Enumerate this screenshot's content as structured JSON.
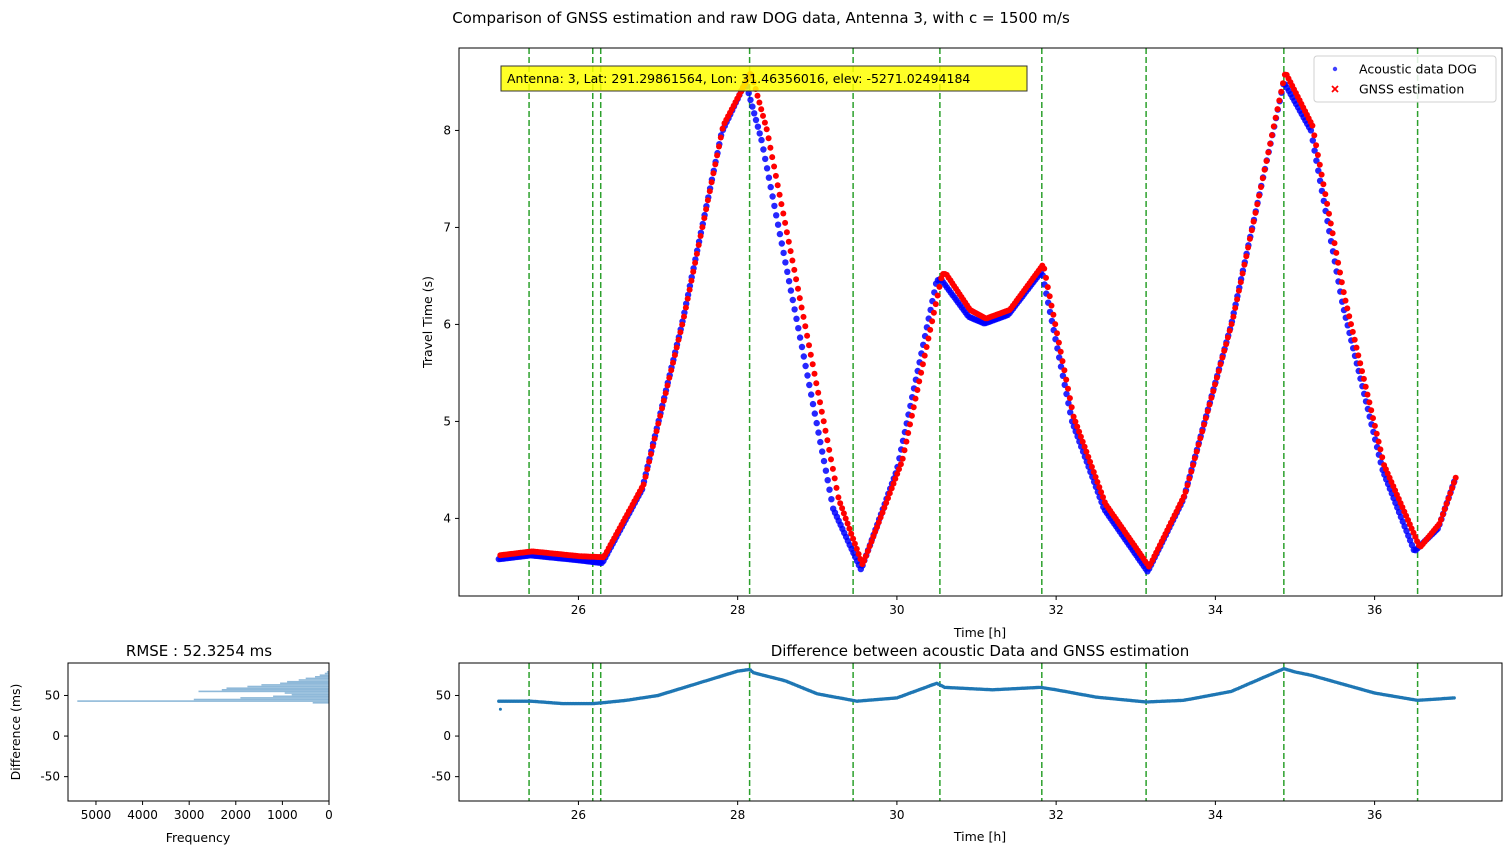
{
  "figure": {
    "title": "Comparison of GNSS estimation and raw DOG data, Antenna 3, with c = 1500 m/s"
  },
  "colors": {
    "acoustic": "#0000ff",
    "gnss": "#ff0000",
    "vline": "#2ca02c",
    "diff": "#1f77b4",
    "hist": "#8fb9d9",
    "annotation_bg": "#ffff00"
  },
  "chart_data": [
    {
      "id": "main",
      "type": "scatter",
      "title": "",
      "xlabel": "Time [h]",
      "ylabel": "Travel Time (s)",
      "xlim": [
        24.5,
        37.6
      ],
      "ylim": [
        3.2,
        8.85
      ],
      "xticks": [
        26,
        28,
        30,
        32,
        34,
        36
      ],
      "yticks": [
        4,
        5,
        6,
        7,
        8
      ],
      "grid": false,
      "legend_position": "top-right",
      "annotation": "Antenna: 3, Lat: 291.29861564, Lon: 31.46356016, elev: -5271.02494184",
      "vlines": [
        25.38,
        26.18,
        26.28,
        28.15,
        29.45,
        30.54,
        31.82,
        33.13,
        34.86,
        36.54
      ],
      "series": [
        {
          "name": "Acoustic data DOG",
          "marker": "dot",
          "x": [
            25.0,
            25.4,
            26.0,
            26.3,
            26.8,
            27.3,
            27.8,
            28.1,
            28.3,
            28.8,
            29.2,
            29.55,
            30.0,
            30.5,
            30.55,
            30.9,
            31.1,
            31.4,
            31.82,
            32.2,
            32.6,
            33.15,
            33.6,
            34.2,
            34.86,
            35.2,
            35.6,
            36.1,
            36.5,
            36.8,
            37.0
          ],
          "y": [
            3.58,
            3.62,
            3.57,
            3.54,
            4.3,
            6.0,
            7.98,
            8.5,
            7.9,
            5.8,
            4.1,
            3.47,
            4.5,
            6.45,
            6.47,
            6.08,
            6.01,
            6.1,
            6.55,
            5.0,
            4.1,
            3.45,
            4.2,
            6.0,
            8.5,
            8.0,
            6.2,
            4.5,
            3.66,
            3.9,
            4.38
          ]
        },
        {
          "name": "GNSS estimation",
          "marker": "x",
          "x": [
            25.0,
            25.4,
            26.0,
            26.3,
            26.8,
            27.3,
            27.8,
            28.15,
            28.35,
            28.85,
            29.25,
            29.55,
            30.05,
            30.55,
            30.6,
            30.9,
            31.1,
            31.4,
            31.82,
            32.2,
            32.6,
            33.15,
            33.6,
            34.2,
            34.86,
            35.2,
            35.6,
            36.1,
            36.55,
            36.8,
            37.0
          ],
          "y": [
            3.62,
            3.66,
            3.61,
            3.6,
            4.35,
            6.05,
            8.05,
            8.6,
            8.0,
            5.9,
            4.2,
            3.52,
            4.6,
            6.52,
            6.52,
            6.15,
            6.06,
            6.15,
            6.62,
            5.05,
            4.15,
            3.5,
            4.25,
            6.05,
            8.6,
            8.05,
            6.3,
            4.55,
            3.7,
            3.95,
            4.42
          ]
        }
      ]
    },
    {
      "id": "diff",
      "type": "scatter",
      "title": "Difference between acoustic Data and GNSS estimation",
      "xlabel": "Time [h]",
      "ylabel": "",
      "xlim": [
        24.5,
        37.6
      ],
      "ylim": [
        -80,
        90
      ],
      "xticks": [
        26,
        28,
        30,
        32,
        34,
        36
      ],
      "yticks": [
        -50,
        0,
        50
      ],
      "grid": false,
      "vlines": [
        25.38,
        26.18,
        26.28,
        28.15,
        29.45,
        30.54,
        31.82,
        33.13,
        34.86,
        36.54
      ],
      "series": [
        {
          "name": "",
          "x": [
            25.0,
            25.4,
            25.8,
            26.18,
            26.3,
            26.6,
            27.0,
            27.5,
            28.0,
            28.15,
            28.2,
            28.6,
            29.0,
            29.5,
            30.0,
            30.5,
            30.6,
            31.2,
            31.8,
            32.0,
            32.5,
            33.13,
            33.6,
            34.2,
            34.86,
            35.0,
            35.2,
            35.6,
            36.0,
            36.54,
            37.0
          ],
          "y": [
            43,
            43,
            40,
            40,
            41,
            44,
            50,
            65,
            80,
            82,
            78,
            68,
            52,
            43,
            47,
            65,
            60,
            57,
            60,
            57,
            48,
            42,
            44,
            55,
            83,
            79,
            75,
            64,
            53,
            44,
            47
          ]
        }
      ]
    },
    {
      "id": "hist",
      "type": "bar",
      "orientation": "horizontal",
      "title": "RMSE : 52.3254 ms",
      "xlabel": "Frequency",
      "ylabel": "Difference (ms)",
      "xlim": [
        5600,
        0
      ],
      "ylim": [
        -80,
        90
      ],
      "xticks": [
        5000,
        4000,
        3000,
        2000,
        1000,
        0
      ],
      "yticks": [
        -50,
        0,
        50
      ],
      "bins": [
        {
          "y": 40,
          "count": 350
        },
        {
          "y": 42,
          "count": 5400
        },
        {
          "y": 44,
          "count": 2900
        },
        {
          "y": 46,
          "count": 1900
        },
        {
          "y": 48,
          "count": 1200
        },
        {
          "y": 50,
          "count": 800
        },
        {
          "y": 52,
          "count": 950
        },
        {
          "y": 54,
          "count": 2800
        },
        {
          "y": 56,
          "count": 2300
        },
        {
          "y": 58,
          "count": 2200
        },
        {
          "y": 60,
          "count": 1750
        },
        {
          "y": 62,
          "count": 1450
        },
        {
          "y": 64,
          "count": 1050
        },
        {
          "y": 66,
          "count": 900
        },
        {
          "y": 68,
          "count": 650
        },
        {
          "y": 70,
          "count": 500
        },
        {
          "y": 72,
          "count": 300
        },
        {
          "y": 74,
          "count": 200
        },
        {
          "y": 76,
          "count": 90
        },
        {
          "y": 78,
          "count": 45
        }
      ]
    }
  ]
}
